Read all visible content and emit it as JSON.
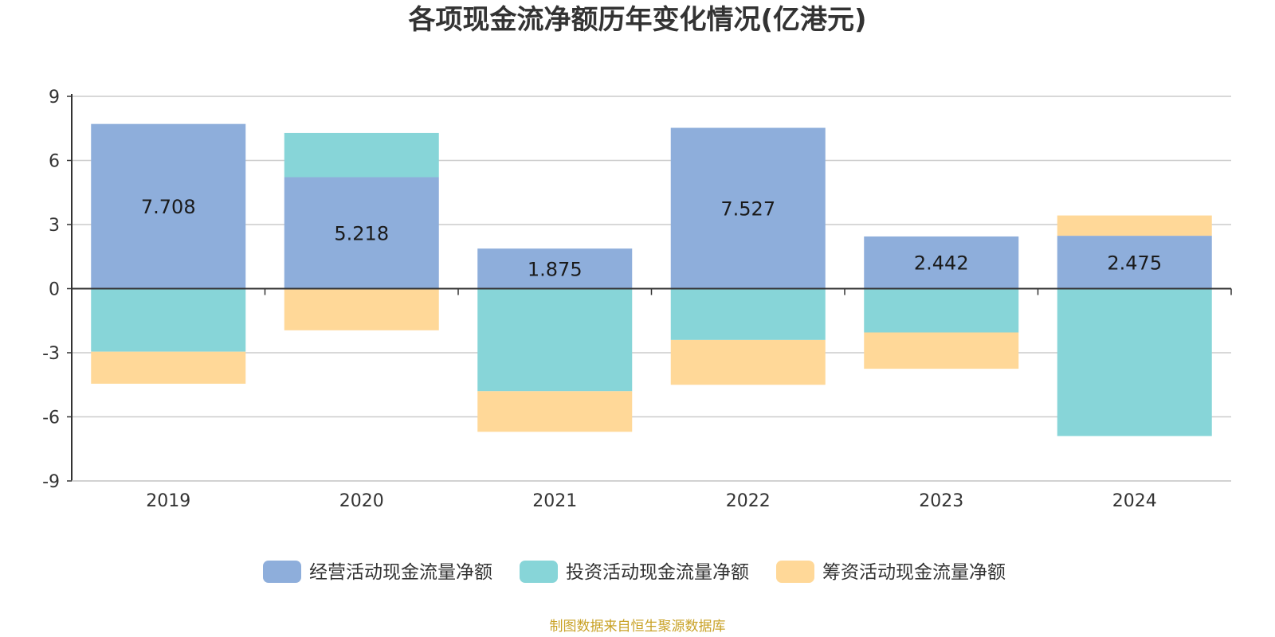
{
  "chart_data": {
    "type": "bar",
    "stacked": true,
    "title": "各项现金流净额历年变化情况(亿港元)",
    "xlabel": "",
    "ylabel": "",
    "categories": [
      "2019",
      "2020",
      "2021",
      "2022",
      "2023",
      "2024"
    ],
    "ylim": [
      -9,
      9
    ],
    "yticks": [
      9,
      6,
      3,
      0,
      -3,
      -6,
      -9
    ],
    "grid": true,
    "legend_position": "bottom",
    "series": [
      {
        "name": "经营活动现金流量净额",
        "color": "#8eaedb",
        "values": [
          7.708,
          5.218,
          1.875,
          7.527,
          2.442,
          2.475
        ],
        "show_labels": true
      },
      {
        "name": "投资活动现金流量净额",
        "color": "#87d5d8",
        "values": [
          -2.95,
          2.07,
          -4.8,
          -2.4,
          -2.05,
          -6.9
        ],
        "show_labels": false
      },
      {
        "name": "筹资活动现金流量净额",
        "color": "#ffd898",
        "values": [
          -1.5,
          -1.95,
          -1.9,
          -2.1,
          -1.7,
          0.95
        ],
        "show_labels": false
      }
    ]
  },
  "source": "制图数据来自恒生聚源数据库"
}
